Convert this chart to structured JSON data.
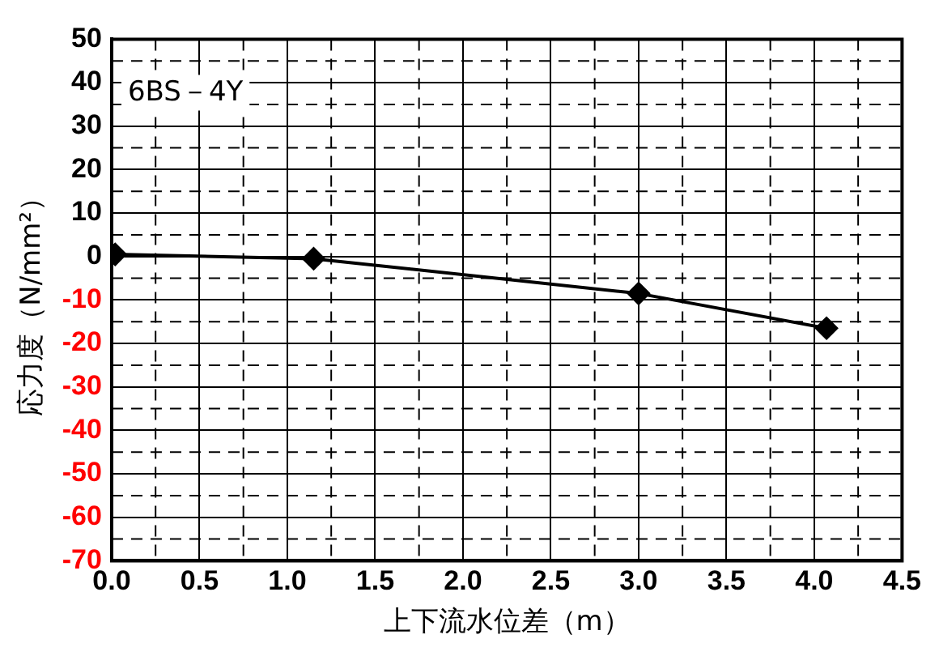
{
  "chart_data": {
    "type": "line",
    "xlabel": "上下流水位差（m）",
    "ylabel": "応力度（N/mm²）",
    "annotations": [
      "6BS－4Y"
    ],
    "x": [
      0.02,
      1.15,
      3.0,
      4.07
    ],
    "series": [
      {
        "color": "#000000",
        "values": [
          0.5,
          -0.5,
          -8.5,
          -16.5
        ]
      }
    ],
    "xlim": [
      0,
      4.5
    ],
    "xticks": [
      {
        "value": 0,
        "label": "0.0"
      },
      0.5,
      {
        "value": 1,
        "label": "1.0"
      },
      1.5,
      {
        "value": 2,
        "label": "2.0"
      },
      2.5,
      {
        "value": 3,
        "label": "3.0"
      },
      3.5,
      {
        "value": 4,
        "label": "4.0"
      },
      4.5
    ],
    "ylim": [
      -70,
      50
    ],
    "yticks": [
      -70,
      -60,
      -50,
      -40,
      -30,
      -20,
      -10,
      0,
      10,
      20,
      30,
      40,
      50
    ],
    "grid": true,
    "marker": "diamond",
    "line_style": "solid",
    "legend": false
  }
}
